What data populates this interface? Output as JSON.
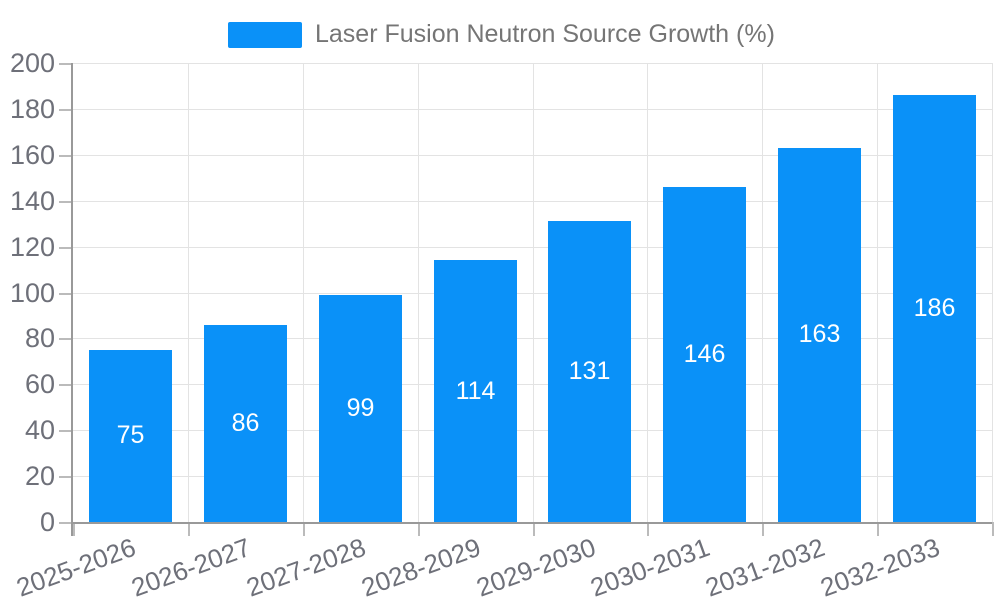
{
  "legend": {
    "label": "Laser Fusion Neutron Source Growth (%)",
    "swatch_color": "#0a91f8"
  },
  "chart_data": {
    "type": "bar",
    "title": "",
    "series": [
      {
        "name": "Laser Fusion Neutron Source Growth (%)",
        "values": [
          75,
          86,
          99,
          114,
          131,
          146,
          163,
          186
        ]
      }
    ],
    "categories": [
      "2025-2026",
      "2026-2027",
      "2027-2028",
      "2028-2029",
      "2029-2030",
      "2030-2031",
      "2031-2032",
      "2032-2033"
    ],
    "xlabel": "",
    "ylabel": "",
    "ylim": [
      0,
      200
    ],
    "ytick_step": 20,
    "ytick_labels": [
      "0",
      "20",
      "40",
      "60",
      "80",
      "100",
      "120",
      "140",
      "160",
      "180",
      "200"
    ],
    "grid": true,
    "legend_position": "top-center",
    "bar_color": "#0a91f8",
    "bar_label_color": "#ffffff",
    "axis_text_color": "#6e7079",
    "axis_line_color": "#999999",
    "gridline_color": "#e3e3e3"
  }
}
